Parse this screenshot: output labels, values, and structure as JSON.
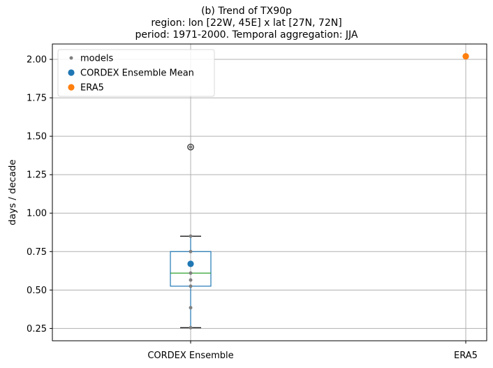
{
  "chart_data": {
    "type": "box",
    "title": [
      "(b) Trend of TX90p",
      "region: lon [22W, 45E] x lat [27N, 72N]",
      "period: 1971-2000. Temporal aggregation: JJA"
    ],
    "xlabel": "",
    "ylabel": "days / decade",
    "categories": [
      "CORDEX Ensemble",
      "ERA5"
    ],
    "ylim": [
      0.17,
      2.1
    ],
    "yticks": [
      0.25,
      0.5,
      0.75,
      1.0,
      1.25,
      1.5,
      1.75,
      2.0
    ],
    "ytick_labels": [
      "0.25",
      "0.50",
      "0.75",
      "1.00",
      "1.25",
      "1.50",
      "1.75",
      "2.00"
    ],
    "grid": true,
    "legend": {
      "position": "top-left",
      "entries": [
        {
          "label": "models",
          "color": "#808080"
        },
        {
          "label": "CORDEX Ensemble Mean",
          "color": "#1f77b4"
        },
        {
          "label": "ERA5",
          "color": "#ff7f0e"
        }
      ]
    },
    "box": {
      "category": "CORDEX Ensemble",
      "whisker_low": 0.255,
      "q1": 0.525,
      "median": 0.61,
      "q3": 0.75,
      "whisker_high": 0.85,
      "outliers": [
        1.43
      ],
      "color": "#1f77b4",
      "median_color": "#2ca02c"
    },
    "series": [
      {
        "name": "models",
        "category": "CORDEX Ensemble",
        "values": [
          0.255,
          0.385,
          0.525,
          0.565,
          0.61,
          0.75,
          0.85,
          1.43
        ],
        "color": "#808080"
      },
      {
        "name": "CORDEX Ensemble Mean",
        "category": "CORDEX Ensemble",
        "values": [
          0.67
        ],
        "color": "#1f77b4"
      },
      {
        "name": "ERA5",
        "category": "ERA5",
        "values": [
          2.02
        ],
        "color": "#ff7f0e"
      }
    ]
  }
}
